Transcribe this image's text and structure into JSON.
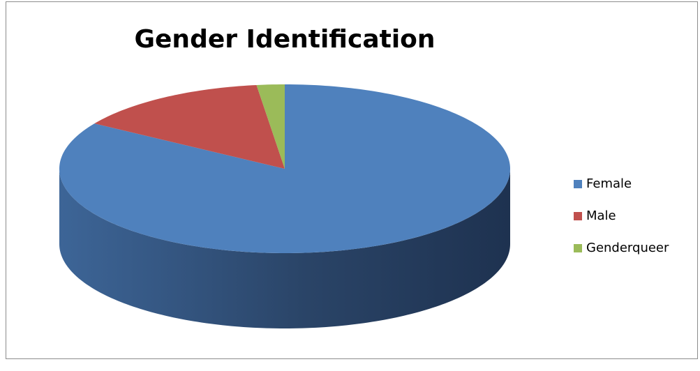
{
  "chart_data": {
    "type": "pie",
    "title": "Gender Identification",
    "categories": [
      "Female",
      "Male",
      "Genderqueer"
    ],
    "values": [
      84,
      14,
      2
    ],
    "colors": [
      "#4f81bd",
      "#c0504d",
      "#9bbb59"
    ],
    "legend": "right"
  }
}
